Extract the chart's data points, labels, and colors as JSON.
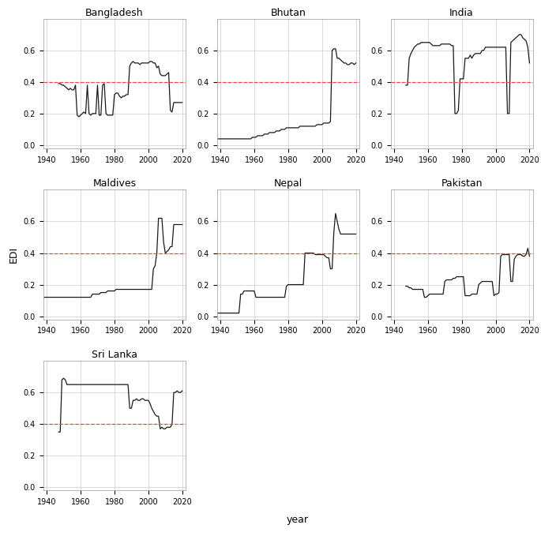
{
  "threshold": 0.399,
  "threshold_color": "#FF4444",
  "line_color": "#1a1a1a",
  "bg_color": "#FFFFFF",
  "grid_color": "#CCCCCC",
  "ylabel": "EDI",
  "xlabel": "year",
  "title_fontsize": 9,
  "axis_fontsize": 7,
  "label_fontsize": 9,
  "bangladesh": {
    "years": [
      1947,
      1948,
      1949,
      1950,
      1951,
      1952,
      1953,
      1954,
      1955,
      1956,
      1957,
      1958,
      1959,
      1960,
      1961,
      1962,
      1963,
      1964,
      1965,
      1966,
      1967,
      1968,
      1969,
      1970,
      1971,
      1972,
      1973,
      1974,
      1975,
      1976,
      1977,
      1978,
      1979,
      1980,
      1981,
      1982,
      1983,
      1984,
      1985,
      1986,
      1987,
      1988,
      1989,
      1990,
      1991,
      1992,
      1993,
      1994,
      1995,
      1996,
      1997,
      1998,
      1999,
      2000,
      2001,
      2002,
      2003,
      2004,
      2005,
      2006,
      2007,
      2008,
      2009,
      2010,
      2011,
      2012,
      2013,
      2014,
      2015,
      2016,
      2017,
      2018,
      2019,
      2020
    ],
    "edi": [
      0.39,
      0.39,
      0.38,
      0.38,
      0.37,
      0.36,
      0.35,
      0.36,
      0.35,
      0.35,
      0.38,
      0.19,
      0.18,
      0.19,
      0.2,
      0.21,
      0.2,
      0.38,
      0.2,
      0.19,
      0.2,
      0.2,
      0.2,
      0.38,
      0.19,
      0.19,
      0.38,
      0.39,
      0.2,
      0.19,
      0.19,
      0.19,
      0.19,
      0.32,
      0.33,
      0.33,
      0.31,
      0.3,
      0.31,
      0.31,
      0.32,
      0.32,
      0.5,
      0.52,
      0.53,
      0.52,
      0.52,
      0.52,
      0.51,
      0.52,
      0.52,
      0.52,
      0.52,
      0.52,
      0.53,
      0.53,
      0.52,
      0.52,
      0.49,
      0.5,
      0.45,
      0.44,
      0.44,
      0.44,
      0.45,
      0.46,
      0.22,
      0.21,
      0.27,
      0.27,
      0.27,
      0.27,
      0.27,
      0.27
    ]
  },
  "bhutan": {
    "years": [
      1938,
      1939,
      1940,
      1941,
      1942,
      1943,
      1944,
      1945,
      1946,
      1947,
      1948,
      1949,
      1950,
      1951,
      1952,
      1953,
      1954,
      1955,
      1956,
      1957,
      1958,
      1959,
      1960,
      1961,
      1962,
      1963,
      1964,
      1965,
      1966,
      1967,
      1968,
      1969,
      1970,
      1971,
      1972,
      1973,
      1974,
      1975,
      1976,
      1977,
      1978,
      1979,
      1980,
      1981,
      1982,
      1983,
      1984,
      1985,
      1986,
      1987,
      1988,
      1989,
      1990,
      1991,
      1992,
      1993,
      1994,
      1995,
      1996,
      1997,
      1998,
      1999,
      2000,
      2001,
      2002,
      2003,
      2004,
      2005,
      2006,
      2007,
      2008,
      2009,
      2010,
      2011,
      2012,
      2013,
      2014,
      2015,
      2016,
      2017,
      2018,
      2019,
      2020
    ],
    "edi": [
      0.04,
      0.04,
      0.04,
      0.04,
      0.04,
      0.04,
      0.04,
      0.04,
      0.04,
      0.04,
      0.04,
      0.04,
      0.04,
      0.04,
      0.04,
      0.04,
      0.04,
      0.04,
      0.04,
      0.04,
      0.04,
      0.05,
      0.05,
      0.05,
      0.06,
      0.06,
      0.06,
      0.06,
      0.07,
      0.07,
      0.07,
      0.08,
      0.08,
      0.08,
      0.08,
      0.09,
      0.09,
      0.09,
      0.1,
      0.1,
      0.1,
      0.11,
      0.11,
      0.11,
      0.11,
      0.11,
      0.11,
      0.11,
      0.11,
      0.12,
      0.12,
      0.12,
      0.12,
      0.12,
      0.12,
      0.12,
      0.12,
      0.12,
      0.12,
      0.13,
      0.13,
      0.13,
      0.13,
      0.14,
      0.14,
      0.14,
      0.14,
      0.15,
      0.6,
      0.61,
      0.61,
      0.55,
      0.55,
      0.54,
      0.53,
      0.52,
      0.52,
      0.51,
      0.51,
      0.52,
      0.52,
      0.51,
      0.52
    ]
  },
  "india": {
    "years": [
      1947,
      1948,
      1949,
      1950,
      1951,
      1952,
      1953,
      1954,
      1955,
      1956,
      1957,
      1958,
      1959,
      1960,
      1961,
      1962,
      1963,
      1964,
      1965,
      1966,
      1967,
      1968,
      1969,
      1970,
      1971,
      1972,
      1973,
      1974,
      1975,
      1976,
      1977,
      1978,
      1979,
      1980,
      1981,
      1982,
      1983,
      1984,
      1985,
      1986,
      1987,
      1988,
      1989,
      1990,
      1991,
      1992,
      1993,
      1994,
      1995,
      1996,
      1997,
      1998,
      1999,
      2000,
      2001,
      2002,
      2003,
      2004,
      2005,
      2006,
      2007,
      2008,
      2009,
      2010,
      2011,
      2012,
      2013,
      2014,
      2015,
      2016,
      2017,
      2018,
      2019,
      2020
    ],
    "edi": [
      0.38,
      0.38,
      0.55,
      0.58,
      0.6,
      0.62,
      0.63,
      0.64,
      0.64,
      0.65,
      0.65,
      0.65,
      0.65,
      0.65,
      0.65,
      0.64,
      0.63,
      0.63,
      0.63,
      0.63,
      0.63,
      0.64,
      0.64,
      0.64,
      0.64,
      0.64,
      0.64,
      0.63,
      0.63,
      0.2,
      0.2,
      0.22,
      0.42,
      0.42,
      0.42,
      0.55,
      0.55,
      0.55,
      0.57,
      0.55,
      0.57,
      0.58,
      0.58,
      0.58,
      0.58,
      0.6,
      0.6,
      0.62,
      0.62,
      0.62,
      0.62,
      0.62,
      0.62,
      0.62,
      0.62,
      0.62,
      0.62,
      0.62,
      0.62,
      0.62,
      0.2,
      0.2,
      0.65,
      0.66,
      0.67,
      0.68,
      0.69,
      0.7,
      0.7,
      0.68,
      0.67,
      0.66,
      0.62,
      0.52
    ]
  },
  "maldives": {
    "years": [
      1938,
      1939,
      1940,
      1941,
      1942,
      1943,
      1944,
      1945,
      1946,
      1947,
      1948,
      1949,
      1950,
      1951,
      1952,
      1953,
      1954,
      1955,
      1956,
      1957,
      1958,
      1959,
      1960,
      1961,
      1962,
      1963,
      1964,
      1965,
      1966,
      1967,
      1968,
      1969,
      1970,
      1971,
      1972,
      1973,
      1974,
      1975,
      1976,
      1977,
      1978,
      1979,
      1980,
      1981,
      1982,
      1983,
      1984,
      1985,
      1986,
      1987,
      1988,
      1989,
      1990,
      1991,
      1992,
      1993,
      1994,
      1995,
      1996,
      1997,
      1998,
      1999,
      2000,
      2001,
      2002,
      2003,
      2004,
      2005,
      2006,
      2007,
      2008,
      2009,
      2010,
      2011,
      2012,
      2013,
      2014,
      2015,
      2016,
      2017,
      2018,
      2019,
      2020
    ],
    "edi": [
      0.12,
      0.12,
      0.12,
      0.12,
      0.12,
      0.12,
      0.12,
      0.12,
      0.12,
      0.12,
      0.12,
      0.12,
      0.12,
      0.12,
      0.12,
      0.12,
      0.12,
      0.12,
      0.12,
      0.12,
      0.12,
      0.12,
      0.12,
      0.12,
      0.12,
      0.12,
      0.12,
      0.12,
      0.12,
      0.14,
      0.14,
      0.14,
      0.14,
      0.14,
      0.15,
      0.15,
      0.15,
      0.15,
      0.16,
      0.16,
      0.16,
      0.16,
      0.16,
      0.17,
      0.17,
      0.17,
      0.17,
      0.17,
      0.17,
      0.17,
      0.17,
      0.17,
      0.17,
      0.17,
      0.17,
      0.17,
      0.17,
      0.17,
      0.17,
      0.17,
      0.17,
      0.17,
      0.17,
      0.17,
      0.17,
      0.3,
      0.32,
      0.4,
      0.62,
      0.62,
      0.62,
      0.47,
      0.4,
      0.41,
      0.42,
      0.44,
      0.44,
      0.58,
      0.58,
      0.58,
      0.58,
      0.58,
      0.58
    ]
  },
  "nepal": {
    "years": [
      1938,
      1939,
      1940,
      1941,
      1942,
      1943,
      1944,
      1945,
      1946,
      1947,
      1948,
      1949,
      1950,
      1951,
      1952,
      1953,
      1954,
      1955,
      1956,
      1957,
      1958,
      1959,
      1960,
      1961,
      1962,
      1963,
      1964,
      1965,
      1966,
      1967,
      1968,
      1969,
      1970,
      1971,
      1972,
      1973,
      1974,
      1975,
      1976,
      1977,
      1978,
      1979,
      1980,
      1981,
      1982,
      1983,
      1984,
      1985,
      1986,
      1987,
      1988,
      1989,
      1990,
      1991,
      1992,
      1993,
      1994,
      1995,
      1996,
      1997,
      1998,
      1999,
      2000,
      2001,
      2002,
      2003,
      2004,
      2005,
      2006,
      2007,
      2008,
      2009,
      2010,
      2011,
      2012,
      2013,
      2014,
      2015,
      2016,
      2017,
      2018,
      2019,
      2020
    ],
    "edi": [
      0.02,
      0.02,
      0.02,
      0.02,
      0.02,
      0.02,
      0.02,
      0.02,
      0.02,
      0.02,
      0.02,
      0.02,
      0.02,
      0.02,
      0.14,
      0.14,
      0.16,
      0.16,
      0.16,
      0.16,
      0.16,
      0.16,
      0.16,
      0.12,
      0.12,
      0.12,
      0.12,
      0.12,
      0.12,
      0.12,
      0.12,
      0.12,
      0.12,
      0.12,
      0.12,
      0.12,
      0.12,
      0.12,
      0.12,
      0.12,
      0.12,
      0.19,
      0.2,
      0.2,
      0.2,
      0.2,
      0.2,
      0.2,
      0.2,
      0.2,
      0.2,
      0.2,
      0.4,
      0.4,
      0.4,
      0.4,
      0.4,
      0.4,
      0.39,
      0.39,
      0.39,
      0.39,
      0.39,
      0.39,
      0.38,
      0.37,
      0.37,
      0.3,
      0.3,
      0.53,
      0.65,
      0.6,
      0.55,
      0.52,
      0.52,
      0.52,
      0.52,
      0.52,
      0.52,
      0.52,
      0.52,
      0.52,
      0.52
    ]
  },
  "pakistan": {
    "years": [
      1947,
      1948,
      1949,
      1950,
      1951,
      1952,
      1953,
      1954,
      1955,
      1956,
      1957,
      1958,
      1959,
      1960,
      1961,
      1962,
      1963,
      1964,
      1965,
      1966,
      1967,
      1968,
      1969,
      1970,
      1971,
      1972,
      1973,
      1974,
      1975,
      1976,
      1977,
      1978,
      1979,
      1980,
      1981,
      1982,
      1983,
      1984,
      1985,
      1986,
      1987,
      1988,
      1989,
      1990,
      1991,
      1992,
      1993,
      1994,
      1995,
      1996,
      1997,
      1998,
      1999,
      2000,
      2001,
      2002,
      2003,
      2004,
      2005,
      2006,
      2007,
      2008,
      2009,
      2010,
      2011,
      2012,
      2013,
      2014,
      2015,
      2016,
      2017,
      2018,
      2019,
      2020
    ],
    "edi": [
      0.19,
      0.19,
      0.18,
      0.18,
      0.17,
      0.17,
      0.17,
      0.17,
      0.17,
      0.17,
      0.17,
      0.12,
      0.12,
      0.13,
      0.14,
      0.14,
      0.14,
      0.14,
      0.14,
      0.14,
      0.14,
      0.14,
      0.14,
      0.22,
      0.23,
      0.23,
      0.23,
      0.23,
      0.24,
      0.24,
      0.25,
      0.25,
      0.25,
      0.25,
      0.25,
      0.13,
      0.13,
      0.13,
      0.13,
      0.14,
      0.14,
      0.14,
      0.14,
      0.2,
      0.21,
      0.22,
      0.22,
      0.22,
      0.22,
      0.22,
      0.22,
      0.22,
      0.13,
      0.14,
      0.14,
      0.15,
      0.38,
      0.39,
      0.39,
      0.39,
      0.39,
      0.39,
      0.22,
      0.22,
      0.36,
      0.38,
      0.39,
      0.39,
      0.39,
      0.38,
      0.38,
      0.39,
      0.43,
      0.38
    ]
  },
  "srilanka": {
    "years": [
      1947,
      1948,
      1949,
      1950,
      1951,
      1952,
      1953,
      1954,
      1955,
      1956,
      1957,
      1958,
      1959,
      1960,
      1961,
      1962,
      1963,
      1964,
      1965,
      1966,
      1967,
      1968,
      1969,
      1970,
      1971,
      1972,
      1973,
      1974,
      1975,
      1976,
      1977,
      1978,
      1979,
      1980,
      1981,
      1982,
      1983,
      1984,
      1985,
      1986,
      1987,
      1988,
      1989,
      1990,
      1991,
      1992,
      1993,
      1994,
      1995,
      1996,
      1997,
      1998,
      1999,
      2000,
      2001,
      2002,
      2003,
      2004,
      2005,
      2006,
      2007,
      2008,
      2009,
      2010,
      2011,
      2012,
      2013,
      2014,
      2015,
      2016,
      2017,
      2018,
      2019,
      2020
    ],
    "edi": [
      0.35,
      0.35,
      0.68,
      0.69,
      0.68,
      0.65,
      0.65,
      0.65,
      0.65,
      0.65,
      0.65,
      0.65,
      0.65,
      0.65,
      0.65,
      0.65,
      0.65,
      0.65,
      0.65,
      0.65,
      0.65,
      0.65,
      0.65,
      0.65,
      0.65,
      0.65,
      0.65,
      0.65,
      0.65,
      0.65,
      0.65,
      0.65,
      0.65,
      0.65,
      0.65,
      0.65,
      0.65,
      0.65,
      0.65,
      0.65,
      0.65,
      0.65,
      0.5,
      0.5,
      0.55,
      0.55,
      0.56,
      0.55,
      0.55,
      0.56,
      0.56,
      0.55,
      0.55,
      0.55,
      0.53,
      0.5,
      0.48,
      0.46,
      0.45,
      0.45,
      0.37,
      0.38,
      0.37,
      0.37,
      0.38,
      0.38,
      0.38,
      0.4,
      0.6,
      0.6,
      0.61,
      0.6,
      0.6,
      0.61
    ]
  },
  "xlim": [
    1938,
    2022
  ],
  "ylim": [
    -0.02,
    0.8
  ],
  "xticks": [
    1940,
    1960,
    1980,
    2000,
    2020
  ],
  "yticks": [
    0.0,
    0.2,
    0.4,
    0.6
  ]
}
